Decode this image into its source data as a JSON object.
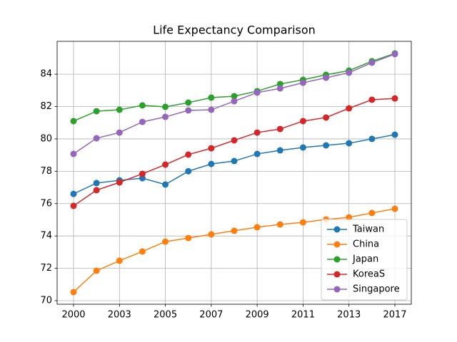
{
  "chart_data": {
    "type": "line",
    "title": "Life Expectancy Comparison",
    "categories": [
      "2000",
      null,
      "2003",
      null,
      "2005",
      null,
      "2007",
      null,
      "2009",
      null,
      "2011",
      null,
      "2013",
      null,
      "2017"
    ],
    "series": [
      {
        "name": "Taiwan",
        "color": "#1f77b4",
        "values": [
          76.6,
          77.27,
          77.44,
          77.57,
          77.18,
          78.0,
          78.45,
          78.63,
          79.07,
          79.29,
          79.47,
          79.6,
          79.73,
          80.0,
          80.26
        ]
      },
      {
        "name": "China",
        "color": "#ff7f0e",
        "values": [
          70.53,
          71.85,
          72.47,
          73.04,
          73.65,
          73.87,
          74.1,
          74.32,
          74.54,
          74.71,
          74.84,
          75.02,
          75.15,
          75.42,
          75.68
        ]
      },
      {
        "name": "Japan",
        "color": "#2ca02c",
        "values": [
          81.1,
          81.71,
          81.8,
          82.07,
          81.98,
          82.24,
          82.55,
          82.64,
          82.95,
          83.39,
          83.65,
          83.96,
          84.22,
          84.8,
          85.28
        ]
      },
      {
        "name": "KoreaS",
        "color": "#d62728",
        "values": [
          75.86,
          76.83,
          77.31,
          77.84,
          78.41,
          79.03,
          79.42,
          79.91,
          80.39,
          80.61,
          81.1,
          81.32,
          81.89,
          82.42,
          82.5
        ]
      },
      {
        "name": "Singapore",
        "color": "#9467bd",
        "values": [
          79.07,
          80.04,
          80.39,
          81.05,
          81.36,
          81.76,
          81.8,
          82.33,
          82.86,
          83.12,
          83.47,
          83.78,
          84.09,
          84.71,
          85.24
        ]
      }
    ],
    "ylim": [
      69.78,
      86.03
    ],
    "yticks": [
      70,
      72,
      74,
      76,
      78,
      80,
      82,
      84
    ],
    "grid": true,
    "legend": "lower right"
  }
}
